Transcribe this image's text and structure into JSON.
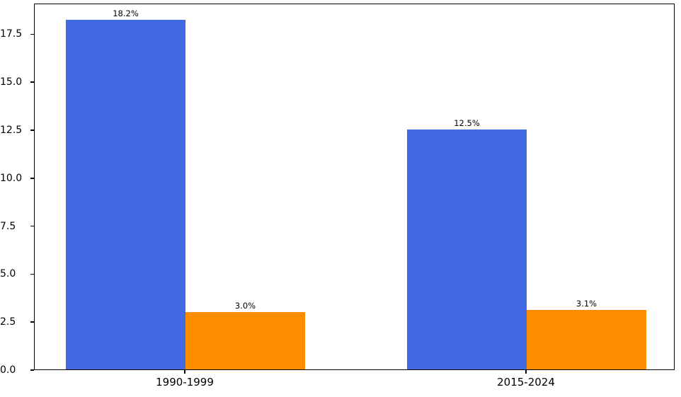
{
  "chart_data": {
    "type": "bar",
    "title": "",
    "xlabel": "",
    "ylabel": "",
    "categories": [
      "1990-1999",
      "2015-2024"
    ],
    "series": [
      {
        "name": "series-blue",
        "color": "#4169E1",
        "values": [
          18.2,
          12.5
        ],
        "labels": [
          "18.2%",
          "12.5%"
        ]
      },
      {
        "name": "series-orange",
        "color": "#FF8C00",
        "values": [
          3.0,
          3.1
        ],
        "labels": [
          "3.0%",
          "3.1%"
        ]
      }
    ],
    "yticks": {
      "values": [
        0,
        2.5,
        5,
        7.5,
        10,
        12.5,
        15,
        17.5
      ],
      "labels": [
        "0.0",
        "2.5",
        "5.0",
        "7.5",
        "10.0",
        "12.5",
        "15.0",
        "17.5"
      ]
    },
    "ylim": [
      0,
      19.1
    ],
    "grid": false,
    "legend": "none",
    "spine_color": "#000000",
    "background_color": "#ffffff"
  }
}
